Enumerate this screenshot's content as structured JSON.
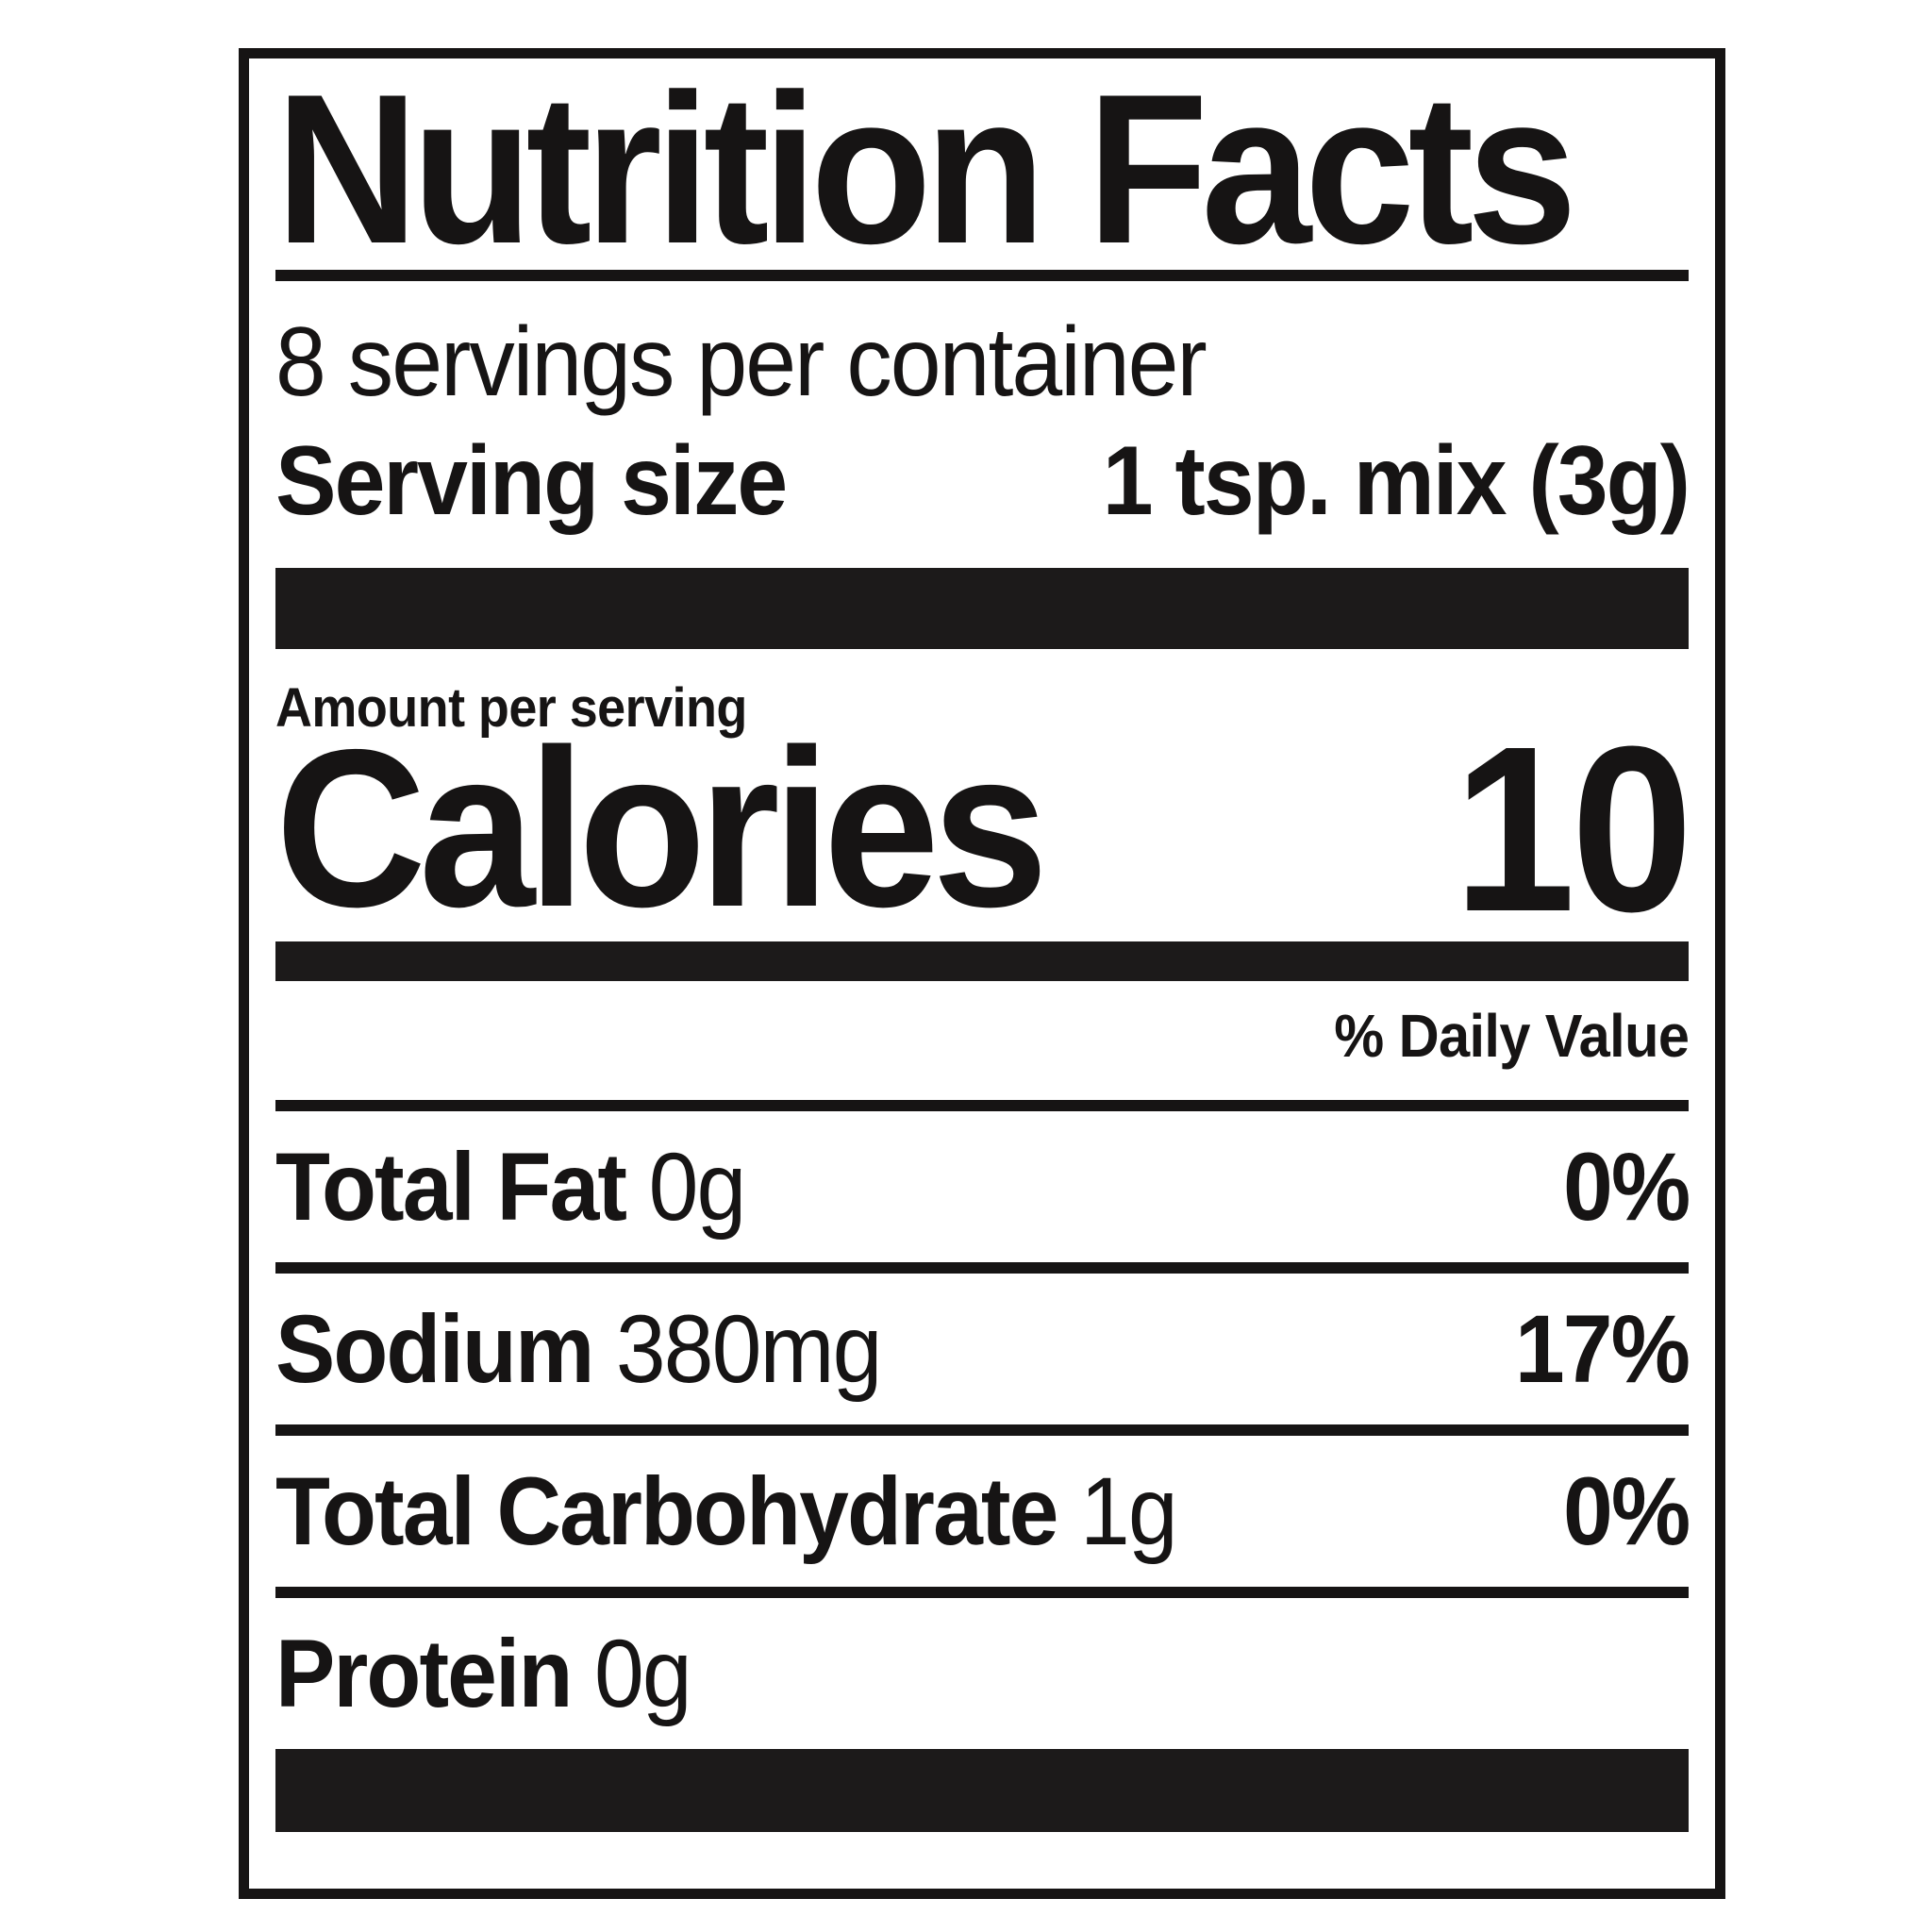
{
  "label": {
    "title": "Nutrition Facts",
    "servings_per_container": "8 servings per container",
    "serving_size_label": "Serving size",
    "serving_size_value": "1 tsp. mix (3g)",
    "amount_per_serving": "Amount per serving",
    "calories_label": "Calories",
    "calories_value": "10",
    "daily_value_header": "% Daily Value",
    "rows": [
      {
        "name": "Total Fat",
        "amount": "0g",
        "dv": "0%"
      },
      {
        "name": "Sodium",
        "amount": "380mg",
        "dv": "17%"
      },
      {
        "name": "Total Carbohydrate",
        "amount": "1g",
        "dv": "0%"
      },
      {
        "name": "Protein",
        "amount": "0g",
        "dv": ""
      }
    ],
    "colors": {
      "ink": "#161414",
      "background": "#ffffff"
    }
  }
}
